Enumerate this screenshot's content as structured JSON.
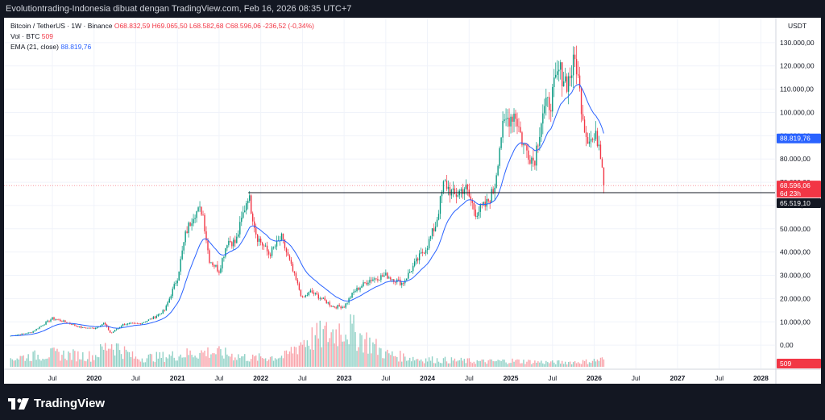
{
  "header": {
    "title": "Evolutiontrading-Indonesia dibuat dengan TradingView.com, Feb 16, 2026 08:35 UTC+7"
  },
  "legend": {
    "symbol": "Bitcoin / TetherUS · 1W · Binance",
    "open": "O68.832,59",
    "high": "H69.065,50",
    "low": "L68.582,68",
    "close": "C68.596,06",
    "change": "-236,52 (-0,34%)",
    "vol_label": "Vol · BTC",
    "vol_value": "509",
    "ema_label": "EMA (21, close)",
    "ema_value": "88.819,76"
  },
  "footer": {
    "brand": "TradingView"
  },
  "colors": {
    "up": "#089981",
    "down": "#f23645",
    "ema": "#2962ff",
    "bg": "#ffffff",
    "dark": "#131722"
  },
  "chart_data": {
    "type": "candlestick",
    "title": "Bitcoin / TetherUS · 1W · Binance",
    "currency": "USDT",
    "ylim": [
      -10000,
      140000
    ],
    "y_ticks": [
      0,
      10000,
      20000,
      30000,
      40000,
      50000,
      60000,
      70000,
      80000,
      90000,
      100000,
      110000,
      120000,
      130000
    ],
    "y_tick_labels": [
      "0,00",
      "10.000,00",
      "20.000,00",
      "30.000,00",
      "40.000,00",
      "50.000,00",
      "60.000,00",
      "70.000,00",
      "80.000,00",
      "90.000,00",
      "100.000,00",
      "110.000,00",
      "120.000,00",
      "130.000,00"
    ],
    "x_ticks": [
      2019.5,
      2020,
      2020.5,
      2021,
      2021.5,
      2022,
      2022.5,
      2023,
      2023.5,
      2024,
      2024.5,
      2025,
      2025.5,
      2026,
      2026.5,
      2027,
      2027.5,
      2028
    ],
    "x_tick_labels": [
      "Jul",
      "2020",
      "Jul",
      "2021",
      "Jul",
      "2022",
      "Jul",
      "2023",
      "Jul",
      "2024",
      "Jul",
      "2025",
      "Jul",
      "2026",
      "Jul",
      "2027",
      "Jul",
      "2028"
    ],
    "price_path": [
      [
        2019.0,
        4000
      ],
      [
        2019.25,
        5500
      ],
      [
        2019.5,
        11500
      ],
      [
        2019.65,
        10000
      ],
      [
        2019.85,
        7500
      ],
      [
        2020.0,
        7200
      ],
      [
        2020.12,
        9500
      ],
      [
        2020.2,
        5000
      ],
      [
        2020.35,
        9000
      ],
      [
        2020.55,
        9300
      ],
      [
        2020.7,
        11500
      ],
      [
        2020.85,
        15000
      ],
      [
        2021.0,
        29000
      ],
      [
        2021.1,
        48000
      ],
      [
        2021.2,
        57000
      ],
      [
        2021.3,
        58000
      ],
      [
        2021.38,
        37000
      ],
      [
        2021.5,
        32000
      ],
      [
        2021.6,
        45000
      ],
      [
        2021.7,
        44000
      ],
      [
        2021.85,
        65000
      ],
      [
        2021.95,
        47000
      ],
      [
        2022.1,
        39000
      ],
      [
        2022.25,
        46000
      ],
      [
        2022.4,
        30000
      ],
      [
        2022.5,
        20000
      ],
      [
        2022.6,
        23000
      ],
      [
        2022.75,
        19500
      ],
      [
        2022.87,
        16500
      ],
      [
        2023.0,
        16600
      ],
      [
        2023.12,
        23000
      ],
      [
        2023.3,
        28000
      ],
      [
        2023.5,
        30000
      ],
      [
        2023.7,
        26500
      ],
      [
        2023.85,
        35000
      ],
      [
        2024.0,
        43000
      ],
      [
        2024.1,
        52000
      ],
      [
        2024.2,
        70000
      ],
      [
        2024.32,
        64000
      ],
      [
        2024.45,
        68000
      ],
      [
        2024.58,
        57000
      ],
      [
        2024.7,
        60000
      ],
      [
        2024.8,
        67000
      ],
      [
        2024.88,
        90000
      ],
      [
        2024.95,
        97000
      ],
      [
        2025.05,
        100000
      ],
      [
        2025.15,
        86000
      ],
      [
        2025.28,
        79000
      ],
      [
        2025.38,
        100000
      ],
      [
        2025.48,
        105000
      ],
      [
        2025.58,
        118000
      ],
      [
        2025.68,
        113000
      ],
      [
        2025.78,
        123000
      ],
      [
        2025.82,
        110000
      ],
      [
        2025.9,
        91000
      ],
      [
        2025.98,
        88000
      ],
      [
        2026.05,
        89000
      ],
      [
        2026.1,
        78000
      ],
      [
        2026.13,
        68596
      ]
    ],
    "ema_series": {
      "name": "EMA (21, close)",
      "last": 88819.76
    },
    "last_price": 68596.06,
    "last_price_label": "68.596,06",
    "countdown_label": "6d 23h",
    "hline_price": 65519.1,
    "hline_label": "65.519,10",
    "ema_label": "88.819,76",
    "volume_label": "509",
    "volume_profile": [
      [
        2019.0,
        20
      ],
      [
        2019.5,
        30
      ],
      [
        2020.0,
        25
      ],
      [
        2020.2,
        55
      ],
      [
        2020.5,
        20
      ],
      [
        2020.9,
        25
      ],
      [
        2021.1,
        30
      ],
      [
        2021.4,
        35
      ],
      [
        2021.9,
        20
      ],
      [
        2022.3,
        25
      ],
      [
        2022.5,
        60
      ],
      [
        2022.87,
        80
      ],
      [
        2023.0,
        95
      ],
      [
        2023.2,
        70
      ],
      [
        2023.5,
        30
      ],
      [
        2023.9,
        18
      ],
      [
        2024.3,
        15
      ],
      [
        2024.7,
        12
      ],
      [
        2025.0,
        14
      ],
      [
        2025.5,
        10
      ],
      [
        2025.9,
        12
      ],
      [
        2026.13,
        18
      ]
    ]
  }
}
